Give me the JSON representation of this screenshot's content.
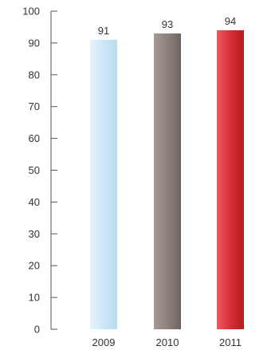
{
  "chart_data": {
    "type": "bar",
    "categories": [
      "2009",
      "2010",
      "2011"
    ],
    "values": [
      91,
      93,
      94
    ],
    "value_labels": [
      "91",
      "93",
      "94"
    ],
    "ylim": [
      0,
      100
    ],
    "yticks": [
      "0",
      "10",
      "20",
      "30",
      "40",
      "50",
      "60",
      "70",
      "80",
      "90",
      "100"
    ],
    "grid": false,
    "bar_colors": [
      {
        "light": "#e6f4fb",
        "mid": "#c9e6f5",
        "dark": "#b7dcef"
      },
      {
        "light": "#a59b94",
        "mid": "#8a7f78",
        "dark": "#6e645e"
      },
      {
        "light": "#ef5a5f",
        "mid": "#d52b33",
        "dark": "#b31c24"
      }
    ]
  }
}
